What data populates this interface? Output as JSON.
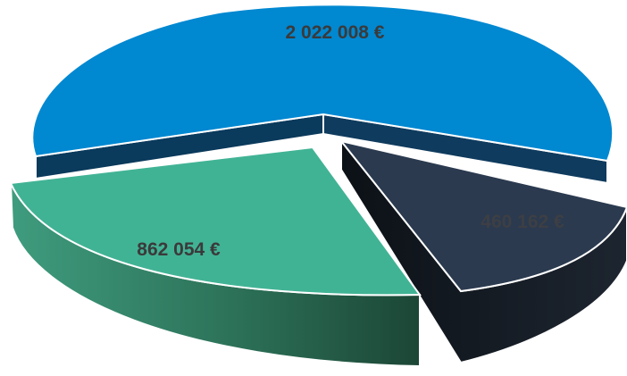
{
  "chart_data": {
    "type": "pie",
    "title": "",
    "legend": "none",
    "slices": [
      {
        "label": "2 022 008 €",
        "value": 2022008,
        "color": "#0088d1"
      },
      {
        "label": "460 162 €",
        "value": 460162,
        "color": "#2b3a4f"
      },
      {
        "label": "862 054 €",
        "value": 862054,
        "color": "#41b395"
      }
    ]
  }
}
